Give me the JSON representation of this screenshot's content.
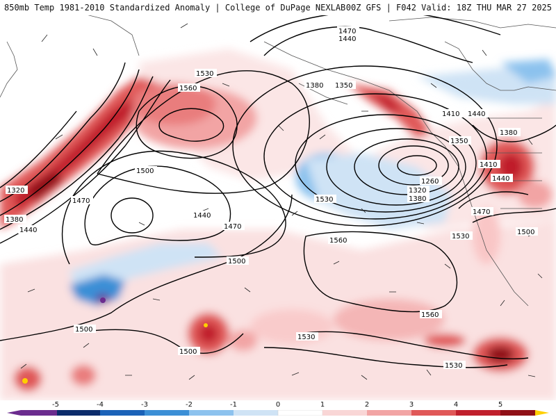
{
  "header": {
    "left_title": "850mb Temp 1981-2010 Standardized Anomaly | College of DuPage NEXLAB",
    "right_title": "00Z GFS | F042 Valid: 18Z THU MAR 27 2025"
  },
  "legend": {
    "ticks": [
      "-5",
      "-4",
      "-3",
      "-2",
      "-1",
      "0",
      "1",
      "2",
      "3",
      "4",
      "5"
    ],
    "colors": [
      "#6b2c8e",
      "#0b2b6b",
      "#1b62b8",
      "#3b8fd6",
      "#8cc2ee",
      "#cfe3f5",
      "#ffffff",
      "#f9d6d6",
      "#f2a4a4",
      "#e05858",
      "#c01f2c",
      "#8f0f16",
      "#ffcf00"
    ]
  },
  "contours": {
    "labels": [
      "1470",
      "1440",
      "1530",
      "1560",
      "1380",
      "1350",
      "1410",
      "1440",
      "1380",
      "1350",
      "1410",
      "1440",
      "1500",
      "1320",
      "1380",
      "1440",
      "1470",
      "1500",
      "1440",
      "1470",
      "1530",
      "1260",
      "1320",
      "1380",
      "1530",
      "1560",
      "1500",
      "1500",
      "1500",
      "1530",
      "1560",
      "1530",
      "1470"
    ]
  }
}
